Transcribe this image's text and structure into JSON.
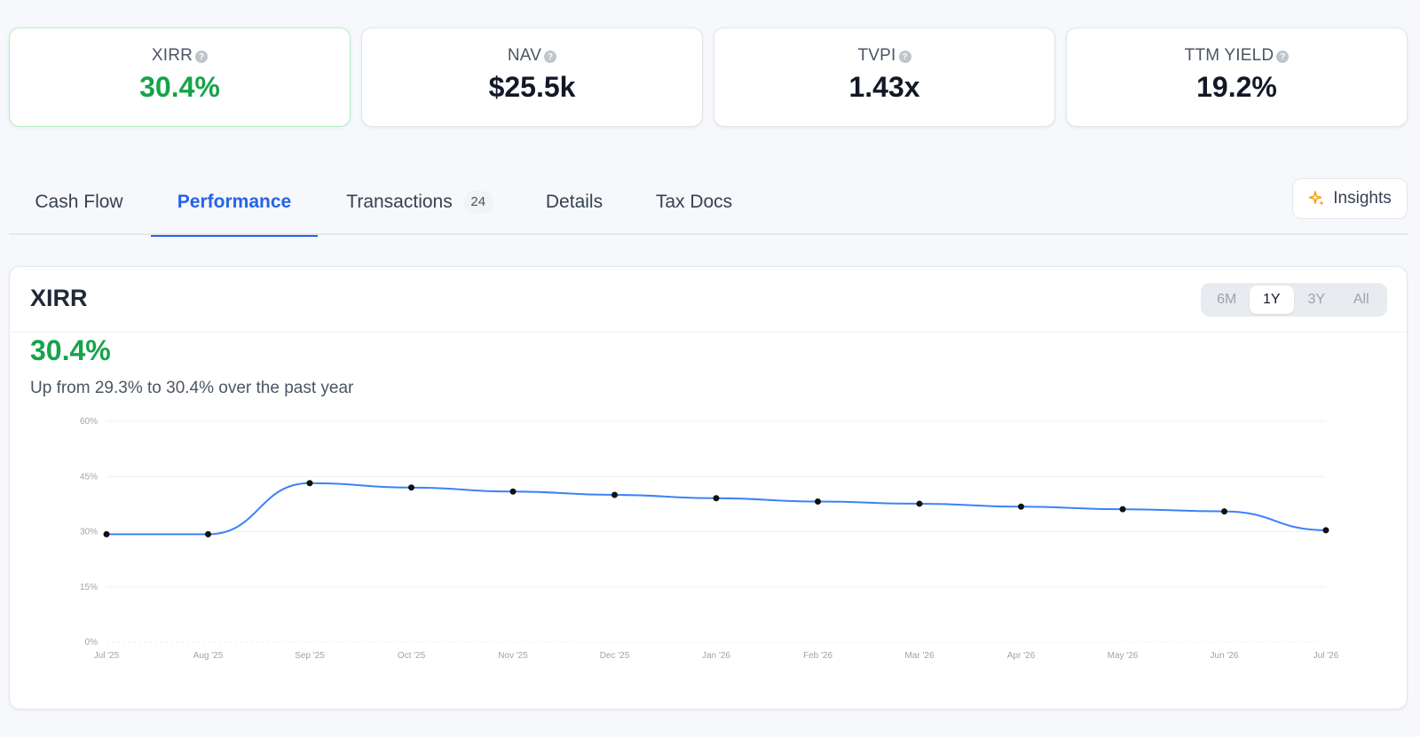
{
  "metrics": [
    {
      "label": "XIRR",
      "value": "30.4%"
    },
    {
      "label": "NAV",
      "value": "$25.5k"
    },
    {
      "label": "TVPI",
      "value": "1.43x"
    },
    {
      "label": "TTM YIELD",
      "value": "19.2%"
    }
  ],
  "help_glyph": "?",
  "tabs": {
    "cash_flow": "Cash Flow",
    "performance": "Performance",
    "transactions": "Transactions",
    "transactions_count": "24",
    "details": "Details",
    "tax_docs": "Tax Docs"
  },
  "insights_label": "Insights",
  "panel": {
    "title": "XIRR",
    "current_value": "30.4%",
    "summary": "Up from 29.3% to 30.4% over the past year",
    "ranges": [
      "6M",
      "1Y",
      "3Y",
      "All"
    ],
    "selected_range": "1Y"
  },
  "colors": {
    "accent": "#2563eb",
    "positive": "#16a34a",
    "line": "#3b82f6"
  },
  "chart_data": {
    "type": "line",
    "x": [
      "Jul '25",
      "Aug '25",
      "Sep '25",
      "Oct '25",
      "Nov '25",
      "Dec '25",
      "Jan '26",
      "Feb '26",
      "Mar '26",
      "Apr '26",
      "May '26",
      "Jun '26",
      "Jul '26"
    ],
    "values": [
      29.3,
      29.3,
      43.2,
      42.0,
      40.9,
      40.0,
      39.1,
      38.2,
      37.6,
      36.8,
      36.1,
      35.5,
      30.4
    ],
    "y_ticks": [
      "0%",
      "15%",
      "30%",
      "45%",
      "60%"
    ],
    "ylim": [
      0,
      60
    ],
    "grid": true,
    "legend": "none"
  }
}
